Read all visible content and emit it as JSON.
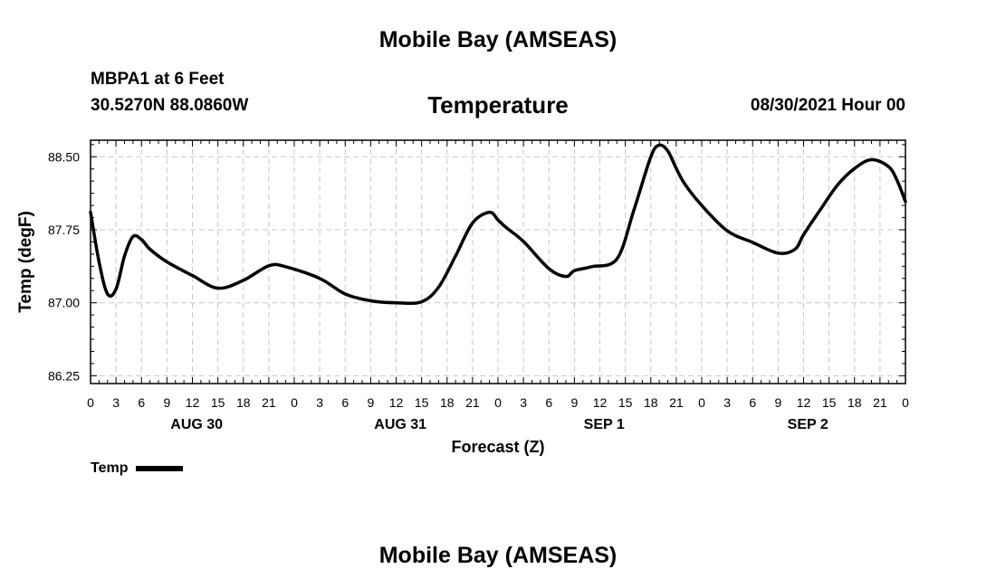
{
  "page": {
    "title_top": "Mobile Bay (AMSEAS)",
    "title_bottom": "Mobile Bay (AMSEAS)",
    "station": "MBPA1 at 6 Feet",
    "coordinates": "30.5270N  88.0860W",
    "variable": "Temperature",
    "run_time": "08/30/2021 Hour 00"
  },
  "chart_data": {
    "type": "line",
    "title": "Temperature",
    "xlabel": "Forecast (Z)",
    "ylabel": "Temp (degF)",
    "x_hours_range": [
      0,
      96
    ],
    "ylim": [
      86.17,
      88.67
    ],
    "y_ticks": [
      "86.25",
      "87.00",
      "87.75",
      "88.50"
    ],
    "x_tick_labels": [
      "0",
      "3",
      "6",
      "9",
      "12",
      "15",
      "18",
      "21",
      "0",
      "3",
      "6",
      "9",
      "12",
      "15",
      "18",
      "21",
      "0",
      "3",
      "6",
      "9",
      "12",
      "15",
      "18",
      "21",
      "0",
      "3",
      "6",
      "9",
      "12",
      "15",
      "18",
      "21",
      "0"
    ],
    "day_labels": [
      "AUG 30",
      "AUG 31",
      "SEP 1",
      "SEP 2"
    ],
    "grid": true,
    "legend_position": "bottom-left",
    "series": [
      {
        "name": "Temp",
        "color": "#000000",
        "x": [
          0,
          1,
          2,
          3,
          4,
          5,
          6,
          7,
          9,
          12,
          15,
          18,
          21,
          23,
          27,
          30,
          33,
          36,
          39,
          41,
          43,
          45,
          47,
          48,
          49,
          51,
          54,
          56,
          57,
          59,
          62,
          64,
          66,
          67,
          68,
          69,
          70,
          72,
          75,
          78,
          81,
          83,
          84,
          86,
          88,
          90,
          92,
          94,
          95,
          96
        ],
        "values": [
          87.93,
          87.42,
          87.09,
          87.14,
          87.48,
          87.68,
          87.65,
          87.55,
          87.42,
          87.28,
          87.15,
          87.23,
          87.38,
          87.37,
          87.25,
          87.09,
          87.02,
          87.0,
          87.01,
          87.16,
          87.48,
          87.82,
          87.93,
          87.85,
          87.77,
          87.63,
          87.35,
          87.27,
          87.33,
          87.37,
          87.45,
          87.95,
          88.5,
          88.62,
          88.56,
          88.38,
          88.22,
          88.0,
          87.74,
          87.62,
          87.51,
          87.55,
          87.7,
          87.96,
          88.21,
          88.38,
          88.47,
          88.4,
          88.26,
          88.04
        ]
      }
    ]
  },
  "legend": {
    "label": "Temp"
  }
}
